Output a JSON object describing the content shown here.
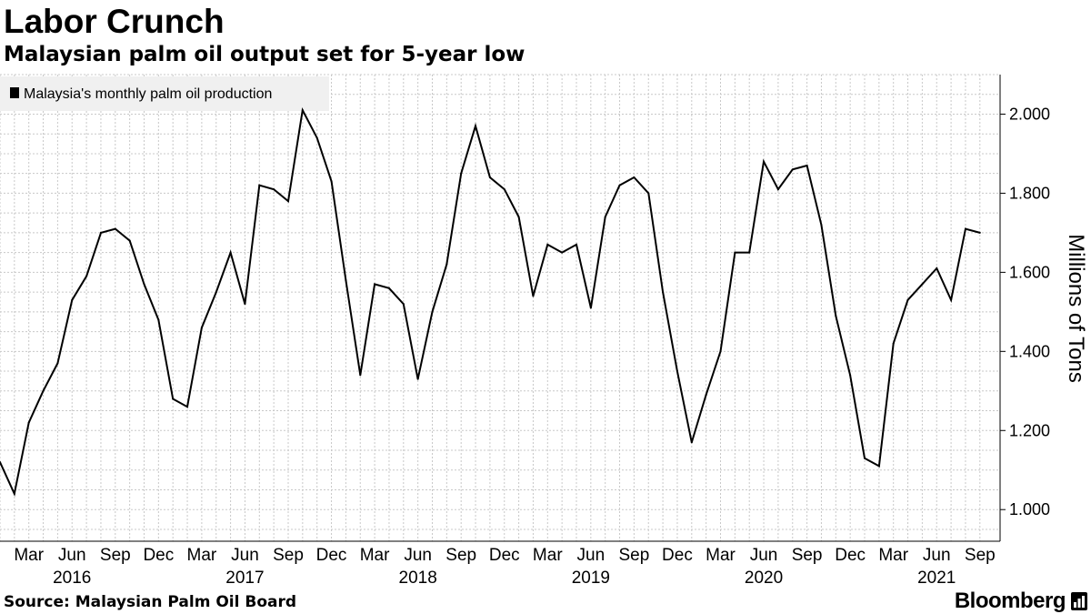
{
  "header": {
    "title": "Labor Crunch",
    "subtitle": "Malaysian palm oil output set for 5-year low"
  },
  "footer": {
    "source": "Source: Malaysian Palm Oil Board",
    "brand": "Bloomberg"
  },
  "colors": {
    "line": "#000000",
    "grid": "#c8c8c8",
    "legend_bg": "#f0f0f0",
    "text": "#000000"
  },
  "chart_data": {
    "type": "line",
    "title": "Labor Crunch",
    "subtitle": "Malaysian palm oil output set for 5-year low",
    "ylabel": "Millions of Tons",
    "xlabel": "",
    "ylim": [
      0.92,
      2.1
    ],
    "yticks": [
      1.0,
      1.2,
      1.4,
      1.6,
      1.8,
      2.0
    ],
    "ytick_labels": [
      "1.000",
      "1.200",
      "1.400",
      "1.600",
      "1.800",
      "2.000"
    ],
    "grid": true,
    "legend_position": "top-left",
    "x_tick_labels": [
      {
        "index": 2,
        "label": "Mar"
      },
      {
        "index": 5,
        "label": "Jun"
      },
      {
        "index": 8,
        "label": "Sep"
      },
      {
        "index": 11,
        "label": "Dec"
      },
      {
        "index": 14,
        "label": "Mar"
      },
      {
        "index": 17,
        "label": "Jun"
      },
      {
        "index": 20,
        "label": "Sep"
      },
      {
        "index": 23,
        "label": "Dec"
      },
      {
        "index": 26,
        "label": "Mar"
      },
      {
        "index": 29,
        "label": "Jun"
      },
      {
        "index": 32,
        "label": "Sep"
      },
      {
        "index": 35,
        "label": "Dec"
      },
      {
        "index": 38,
        "label": "Mar"
      },
      {
        "index": 41,
        "label": "Jun"
      },
      {
        "index": 44,
        "label": "Sep"
      },
      {
        "index": 47,
        "label": "Dec"
      },
      {
        "index": 50,
        "label": "Mar"
      },
      {
        "index": 53,
        "label": "Jun"
      },
      {
        "index": 56,
        "label": "Sep"
      },
      {
        "index": 59,
        "label": "Dec"
      },
      {
        "index": 62,
        "label": "Mar"
      },
      {
        "index": 65,
        "label": "Jun"
      },
      {
        "index": 68,
        "label": "Sep"
      }
    ],
    "year_labels": [
      {
        "index": 5,
        "label": "2016"
      },
      {
        "index": 17,
        "label": "2017"
      },
      {
        "index": 29,
        "label": "2018"
      },
      {
        "index": 41,
        "label": "2019"
      },
      {
        "index": 53,
        "label": "2020"
      },
      {
        "index": 65,
        "label": "2021"
      }
    ],
    "x": [
      "2016-01",
      "2016-02",
      "2016-03",
      "2016-04",
      "2016-05",
      "2016-06",
      "2016-07",
      "2016-08",
      "2016-09",
      "2016-10",
      "2016-11",
      "2016-12",
      "2017-01",
      "2017-02",
      "2017-03",
      "2017-04",
      "2017-05",
      "2017-06",
      "2017-07",
      "2017-08",
      "2017-09",
      "2017-10",
      "2017-11",
      "2017-12",
      "2018-01",
      "2018-02",
      "2018-03",
      "2018-04",
      "2018-05",
      "2018-06",
      "2018-07",
      "2018-08",
      "2018-09",
      "2018-10",
      "2018-11",
      "2018-12",
      "2019-01",
      "2019-02",
      "2019-03",
      "2019-04",
      "2019-05",
      "2019-06",
      "2019-07",
      "2019-08",
      "2019-09",
      "2019-10",
      "2019-11",
      "2019-12",
      "2020-01",
      "2020-02",
      "2020-03",
      "2020-04",
      "2020-05",
      "2020-06",
      "2020-07",
      "2020-08",
      "2020-09",
      "2020-10",
      "2020-11",
      "2020-12",
      "2021-01",
      "2021-02",
      "2021-03",
      "2021-04",
      "2021-05",
      "2021-06",
      "2021-07",
      "2021-08",
      "2021-09"
    ],
    "series": [
      {
        "name": "Malaysia's monthly palm oil production",
        "values": [
          1.12,
          1.04,
          1.22,
          1.3,
          1.37,
          1.53,
          1.59,
          1.7,
          1.71,
          1.68,
          1.57,
          1.48,
          1.28,
          1.26,
          1.46,
          1.55,
          1.65,
          1.52,
          1.82,
          1.81,
          1.78,
          2.01,
          1.94,
          1.83,
          1.58,
          1.34,
          1.57,
          1.56,
          1.52,
          1.33,
          1.5,
          1.62,
          1.85,
          1.97,
          1.84,
          1.81,
          1.74,
          1.54,
          1.67,
          1.65,
          1.67,
          1.51,
          1.74,
          1.82,
          1.84,
          1.8,
          1.55,
          1.35,
          1.17,
          1.29,
          1.4,
          1.65,
          1.65,
          1.88,
          1.81,
          1.86,
          1.87,
          1.72,
          1.49,
          1.34,
          1.13,
          1.11,
          1.42,
          1.53,
          1.57,
          1.61,
          1.53,
          1.71,
          1.7
        ]
      }
    ]
  }
}
